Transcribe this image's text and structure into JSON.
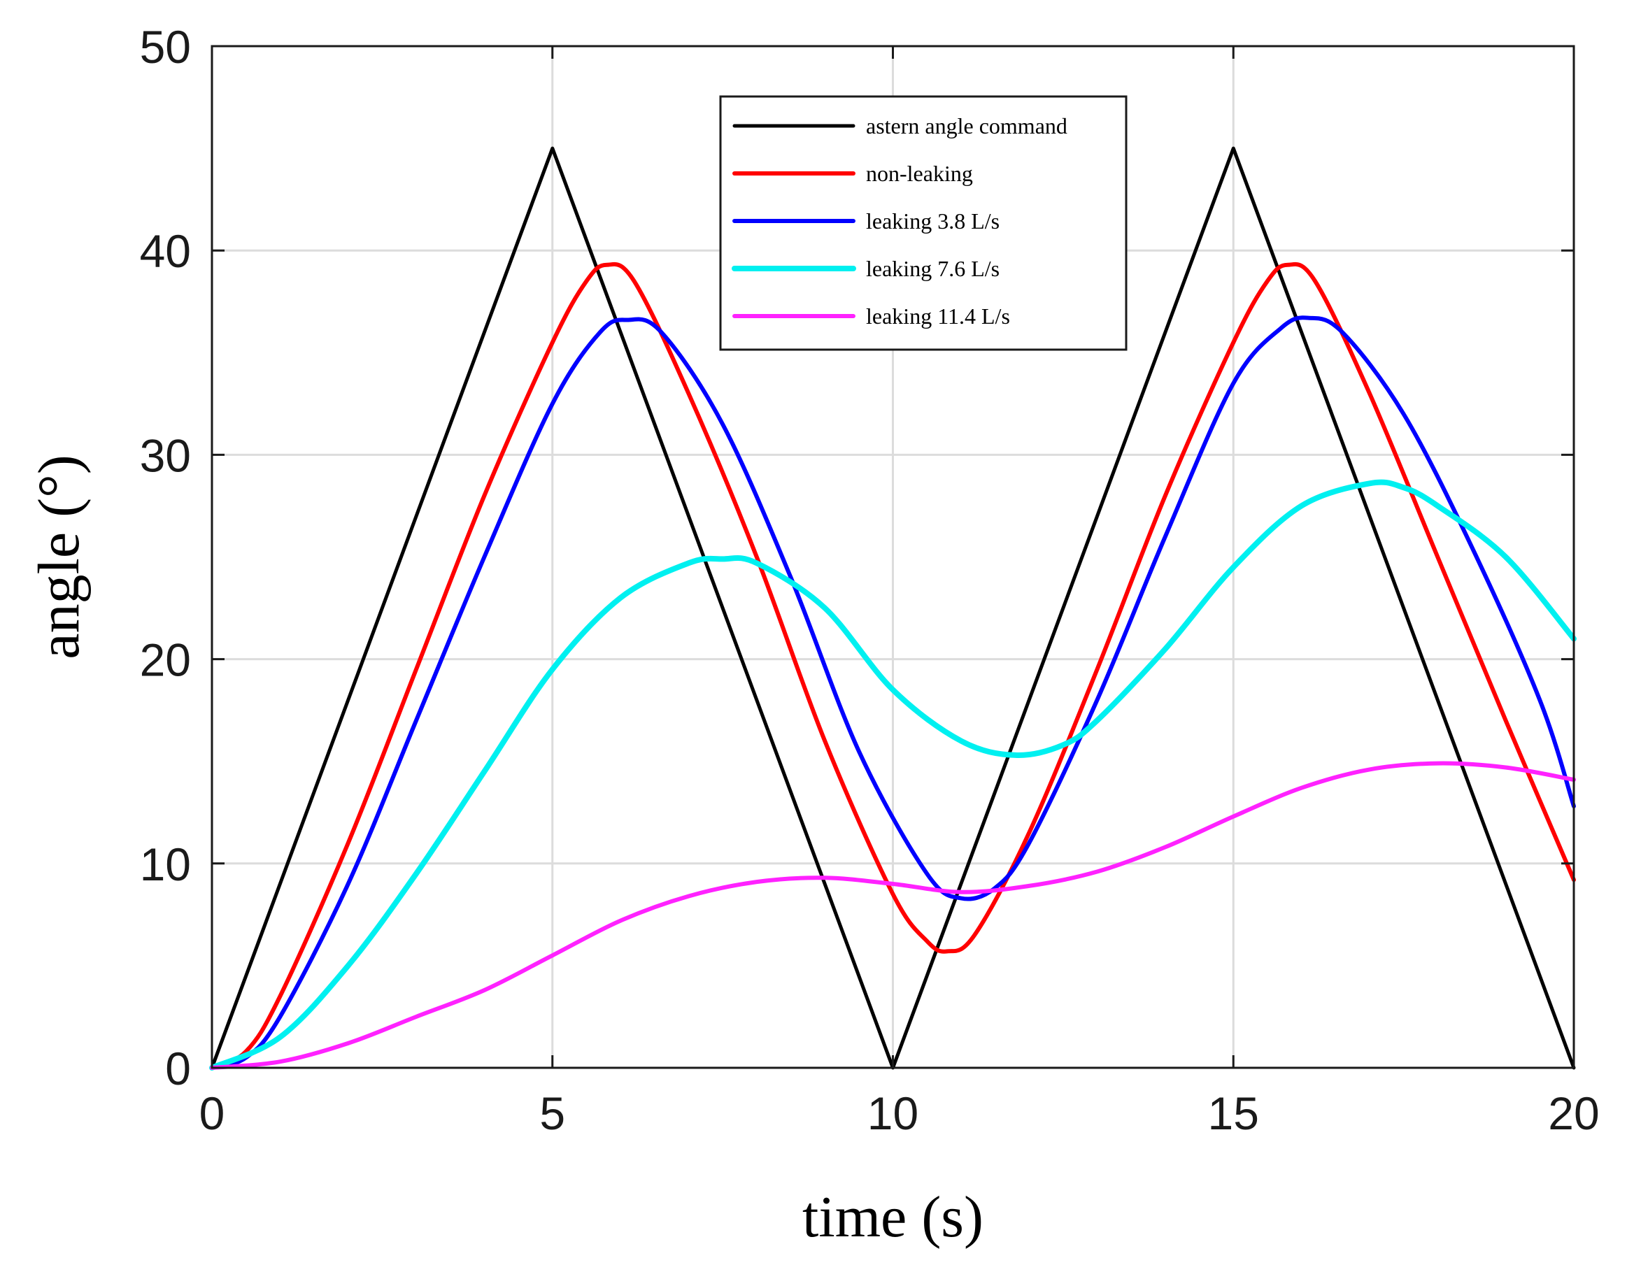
{
  "chart_data": {
    "type": "line",
    "title": "",
    "xlabel": "time (s)",
    "ylabel": "angle (°)",
    "xlim": [
      0,
      20
    ],
    "ylim": [
      0,
      50
    ],
    "xticks": [
      0,
      5,
      10,
      15,
      20
    ],
    "yticks": [
      0,
      10,
      20,
      30,
      40,
      50
    ],
    "grid": true,
    "legend_position": "top-center",
    "series": [
      {
        "name": "astern angle command",
        "color": "#000000",
        "x": [
          0,
          5,
          10,
          15,
          20
        ],
        "y": [
          0,
          45,
          0,
          45,
          0
        ]
      },
      {
        "name": "non-leaking",
        "color": "#ff0000",
        "x": [
          0,
          0.5,
          1,
          2,
          3,
          4,
          5,
          5.5,
          5.8,
          6.2,
          7,
          8,
          9,
          10,
          10.5,
          10.8,
          11.2,
          12,
          13,
          14,
          15,
          15.5,
          15.8,
          16.2,
          17,
          18,
          19,
          20
        ],
        "y": [
          0,
          0.8,
          3.5,
          11,
          19.5,
          28,
          35.5,
          38.5,
          39.3,
          38.5,
          33,
          25,
          16,
          8.5,
          6.2,
          5.7,
          6.5,
          11.5,
          19.5,
          28,
          35.5,
          38.5,
          39.3,
          38.5,
          33,
          25,
          17,
          9.2
        ]
      },
      {
        "name": "leaking 3.8 L/s",
        "color": "#0000ff",
        "x": [
          0,
          0.5,
          1,
          2,
          3,
          4,
          5,
          5.7,
          6.1,
          6.6,
          7.5,
          8.5,
          9.5,
          10.5,
          11,
          11.5,
          12,
          13,
          14,
          15,
          15.7,
          16.1,
          16.6,
          17.5,
          18.5,
          19.5,
          20
        ],
        "y": [
          0,
          0.5,
          2.5,
          9,
          17,
          25,
          32.5,
          36,
          36.6,
          36,
          31.5,
          24,
          15.5,
          9.5,
          8.3,
          8.8,
          11,
          18,
          26,
          33.5,
          36.2,
          36.7,
          36,
          32,
          25.5,
          18,
          12.8
        ]
      },
      {
        "name": "leaking 7.6 L/s",
        "color": "#00f0f0",
        "x": [
          0,
          1,
          2,
          3,
          4,
          5,
          6,
          7,
          7.5,
          8,
          9,
          10,
          11,
          11.8,
          12.5,
          13,
          14,
          15,
          16,
          17,
          17.5,
          18,
          19,
          20
        ],
        "y": [
          0,
          1.5,
          5,
          9.5,
          14.5,
          19.5,
          23,
          24.7,
          24.9,
          24.7,
          22.5,
          18.5,
          16,
          15.3,
          15.8,
          17,
          20.5,
          24.5,
          27.5,
          28.6,
          28.4,
          27.5,
          25,
          21
        ]
      },
      {
        "name": "leaking 11.4 L/s",
        "color": "#ff22ff",
        "x": [
          0,
          1,
          2,
          3,
          4,
          5,
          6,
          7,
          8,
          9,
          10,
          11,
          12,
          13,
          14,
          15,
          16,
          17,
          18,
          19,
          20
        ],
        "y": [
          0,
          0.3,
          1.2,
          2.5,
          3.8,
          5.5,
          7.2,
          8.4,
          9.1,
          9.3,
          9.0,
          8.6,
          8.9,
          9.6,
          10.8,
          12.3,
          13.7,
          14.6,
          14.9,
          14.7,
          14.1
        ]
      }
    ]
  }
}
